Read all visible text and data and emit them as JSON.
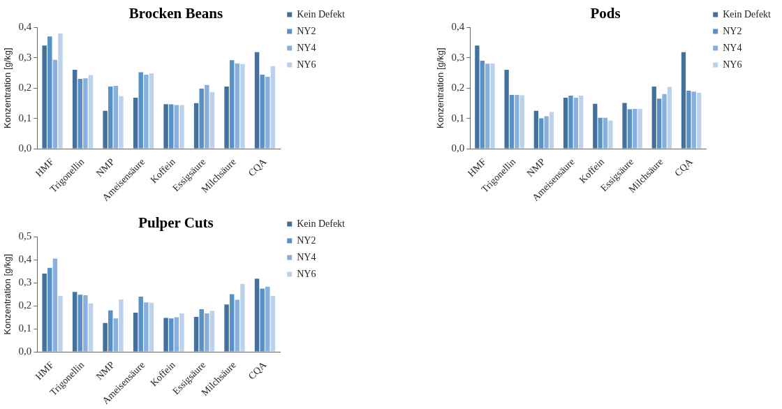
{
  "chart_data": [
    {
      "type": "bar",
      "title": "Brocken Beans",
      "ylabel": "Konzentration [g/kg]",
      "categories": [
        "HMF",
        "Trigonellin",
        "NMP",
        "Ameisensäure",
        "Koffein",
        "Essigsäure",
        "Milchsäure",
        "CQA"
      ],
      "series": [
        {
          "name": "Kein Defekt",
          "color": "#44709c",
          "values": [
            0.34,
            0.26,
            0.125,
            0.168,
            0.147,
            0.15,
            0.205,
            0.318
          ]
        },
        {
          "name": "NY2",
          "color": "#5691c8",
          "values": [
            0.37,
            0.23,
            0.205,
            0.252,
            0.146,
            0.198,
            0.292,
            0.244
          ]
        },
        {
          "name": "NY4",
          "color": "#88b0de",
          "values": [
            0.293,
            0.232,
            0.207,
            0.244,
            0.144,
            0.21,
            0.281,
            0.237
          ]
        },
        {
          "name": "NY6",
          "color": "#bcd2ec",
          "values": [
            0.38,
            0.243,
            0.173,
            0.248,
            0.144,
            0.187,
            0.279,
            0.272
          ]
        }
      ],
      "ylim": [
        0,
        0.4
      ],
      "yticks": [
        {
          "value": 0,
          "label": "0,0"
        },
        {
          "value": 0.1,
          "label": "0,1"
        },
        {
          "value": 0.2,
          "label": "0,2"
        },
        {
          "value": 0.3,
          "label": "0,3"
        },
        {
          "value": 0.4,
          "label": "0,4"
        }
      ],
      "grid": false,
      "legend": "right"
    },
    {
      "type": "bar",
      "title": "Pods",
      "ylabel": "Konzentration [g/kg]",
      "categories": [
        "HMF",
        "Trigonellin",
        "NMP",
        "Ameisensäure",
        "Koffein",
        "Essigsäure",
        "Milchsäure",
        "CQA"
      ],
      "series": [
        {
          "name": "Kein Defekt",
          "color": "#44709c",
          "values": [
            0.34,
            0.26,
            0.125,
            0.168,
            0.148,
            0.151,
            0.205,
            0.318
          ]
        },
        {
          "name": "NY2",
          "color": "#5691c8",
          "values": [
            0.29,
            0.177,
            0.1,
            0.175,
            0.102,
            0.13,
            0.165,
            0.191
          ]
        },
        {
          "name": "NY4",
          "color": "#88b0de",
          "values": [
            0.28,
            0.177,
            0.107,
            0.168,
            0.102,
            0.131,
            0.18,
            0.188
          ]
        },
        {
          "name": "NY6",
          "color": "#bcd2ec",
          "values": [
            0.281,
            0.176,
            0.121,
            0.175,
            0.093,
            0.131,
            0.204,
            0.184
          ]
        }
      ],
      "ylim": [
        0,
        0.4
      ],
      "yticks": [
        {
          "value": 0,
          "label": "0,0"
        },
        {
          "value": 0.1,
          "label": "0,1"
        },
        {
          "value": 0.2,
          "label": "0,2"
        },
        {
          "value": 0.3,
          "label": "0,3"
        },
        {
          "value": 0.4,
          "label": "0,4"
        }
      ],
      "grid": false,
      "legend": "right"
    },
    {
      "type": "bar",
      "title": "Pulper Cuts",
      "ylabel": "Konzentration [g/kg]",
      "categories": [
        "HMF",
        "Trigonellin",
        "NMP",
        "Ameisensäure",
        "Koffein",
        "Essigsäure",
        "Milchsäure",
        "CQA"
      ],
      "series": [
        {
          "name": "Kein Defekt",
          "color": "#44709c",
          "values": [
            0.34,
            0.26,
            0.125,
            0.17,
            0.147,
            0.152,
            0.206,
            0.318
          ]
        },
        {
          "name": "NY2",
          "color": "#5691c8",
          "values": [
            0.365,
            0.248,
            0.18,
            0.24,
            0.145,
            0.185,
            0.25,
            0.275
          ]
        },
        {
          "name": "NY4",
          "color": "#88b0de",
          "values": [
            0.405,
            0.246,
            0.145,
            0.215,
            0.15,
            0.167,
            0.226,
            0.283
          ]
        },
        {
          "name": "NY6",
          "color": "#bcd2ec",
          "values": [
            0.243,
            0.21,
            0.228,
            0.213,
            0.167,
            0.178,
            0.295,
            0.243
          ]
        }
      ],
      "ylim": [
        0,
        0.5
      ],
      "yticks": [
        {
          "value": 0,
          "label": "0,0"
        },
        {
          "value": 0.1,
          "label": "0,1"
        },
        {
          "value": 0.2,
          "label": "0,2"
        },
        {
          "value": 0.3,
          "label": "0,3"
        },
        {
          "value": 0.4,
          "label": "0,4"
        },
        {
          "value": 0.5,
          "label": "0,5"
        }
      ],
      "grid": false,
      "legend": "right"
    }
  ]
}
